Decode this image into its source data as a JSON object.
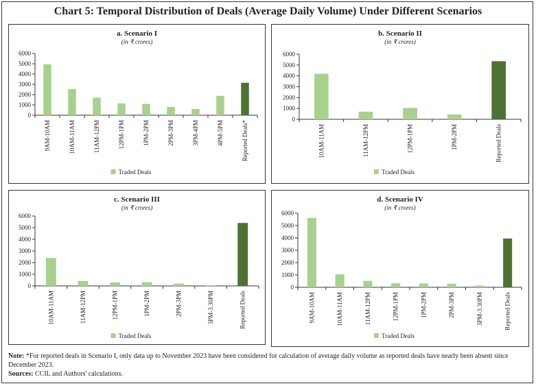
{
  "title": "Chart 5: Temporal Distribution of Deals (Average Daily Volume) Under Different Scenarios",
  "colors": {
    "traded": "#a9d18e",
    "reported": "#4e7233"
  },
  "chart_data": [
    {
      "type": "bar",
      "title": "a. Scenario I",
      "subtitle": "(in ₹ crores)",
      "categories": [
        "9AM-10AM",
        "10AM-11AM",
        "11AM-12PM",
        "12PM-1PM",
        "1PM-2PM",
        "2PM-3PM",
        "3PM-4PM",
        "4PM-5PM",
        "Reported Deals*"
      ],
      "values": [
        4950,
        2550,
        1700,
        1150,
        1100,
        800,
        600,
        1880,
        3150
      ],
      "highlight_last": true,
      "ylim": [
        0,
        6000
      ],
      "yticks": [
        0,
        1000,
        2000,
        3000,
        4000,
        5000,
        6000
      ],
      "legend": "Traded Deals",
      "legend_position": "bottom"
    },
    {
      "type": "bar",
      "title": "b. Scenario II",
      "subtitle": "(in ₹ crores)",
      "categories": [
        "10AM-11AM",
        "11AM-12PM",
        "12PM-1PM",
        "1PM-2PM",
        "Reported Deals"
      ],
      "values": [
        4200,
        700,
        1050,
        450,
        5350
      ],
      "highlight_last": true,
      "ylim": [
        0,
        6000
      ],
      "yticks": [
        0,
        1000,
        2000,
        3000,
        4000,
        5000,
        6000
      ],
      "legend": "Traded Deals",
      "legend_position": "bottom"
    },
    {
      "type": "bar",
      "title": "c. Scenario III",
      "subtitle": "(in ₹ crores)",
      "categories": [
        "10AM-11AM",
        "11AM-12PM",
        "12PM-1PM",
        "1PM-2PM",
        "2PM-3PM",
        "3PM-3.30PM",
        "Reported Deals"
      ],
      "values": [
        2400,
        420,
        300,
        320,
        200,
        50,
        5400
      ],
      "highlight_last": true,
      "ylim": [
        0,
        6000
      ],
      "yticks": [
        0,
        1000,
        2000,
        3000,
        4000,
        5000,
        6000
      ],
      "legend": "Traded Deals",
      "legend_position": "bottom"
    },
    {
      "type": "bar",
      "title": "d. Scenario IV",
      "subtitle": "(in ₹ crores)",
      "categories": [
        "9AM-10AM",
        "10AM-11AM",
        "11AM-12PM",
        "12PM-1PM",
        "1PM-2PM",
        "2PM-3PM",
        "3PM-3.30PM",
        "Reported Deals"
      ],
      "values": [
        5620,
        1050,
        520,
        330,
        310,
        290,
        140,
        3950
      ],
      "highlight_last": true,
      "ylim": [
        0,
        6000
      ],
      "yticks": [
        0,
        1000,
        2000,
        3000,
        4000,
        5000,
        6000
      ],
      "legend": "Traded Deals",
      "legend_position": "bottom"
    }
  ],
  "note": {
    "label": "Note:",
    "text": " *For reported deals in Scenario I, only data up to November 2023 have been considered for calculation of average daily volume as reported deals have nearly been absent since December 2023.",
    "sources_label": "Sources:",
    "sources_text": " CCIL and Authors' calculations."
  }
}
